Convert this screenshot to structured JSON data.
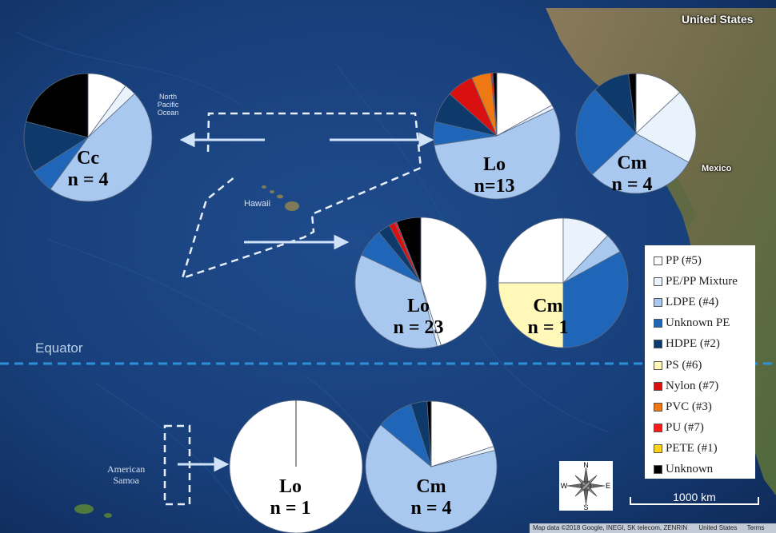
{
  "map": {
    "labels": {
      "north_pacific": "North\nPacific\nOcean",
      "hawaii": "Hawaii",
      "equator": "Equator",
      "american_samoa": "American\nSamoa",
      "united_states": "United States",
      "mexico": "Mexico"
    },
    "scale_label": "1000 km",
    "compass": {
      "n": "N",
      "e": "E",
      "s": "S",
      "w": "W"
    },
    "attribution": {
      "data": "Map data ©2018 Google, INEGI, SK telecom, ZENRIN",
      "region": "United States",
      "terms": "Terms"
    }
  },
  "legend": [
    {
      "label": "PP (#5)",
      "color": "#ffffff"
    },
    {
      "label": "PE/PP Mixture",
      "color": "#eaf2fc"
    },
    {
      "label": "LDPE (#4)",
      "color": "#a9c8ef"
    },
    {
      "label": "Unknown PE",
      "color": "#1f66b8"
    },
    {
      "label": "HDPE (#2)",
      "color": "#0d3a6a"
    },
    {
      "label": "PS (#6)",
      "color": "#fff8b8"
    },
    {
      "label": "Nylon (#7)",
      "color": "#d81010"
    },
    {
      "label": "PVC (#3)",
      "color": "#ee7812"
    },
    {
      "label": "PU (#7)",
      "color": "#ff1a1a"
    },
    {
      "label": "PETE (#1)",
      "color": "#ffd21a"
    },
    {
      "label": "Unknown",
      "color": "#000000"
    }
  ],
  "chart_data": {
    "type": "pie",
    "categories": [
      "PP (#5)",
      "PE/PP Mixture",
      "LDPE (#4)",
      "Unknown PE",
      "HDPE (#2)",
      "PS (#6)",
      "Nylon (#7)",
      "PVC (#3)",
      "PU (#7)",
      "PETE (#1)",
      "Unknown"
    ],
    "pies": [
      {
        "species": "Cc",
        "n_label": "n = 4",
        "values": [
          10,
          3,
          47,
          6,
          13,
          0,
          0,
          0,
          0,
          0,
          21
        ]
      },
      {
        "species": "Lo",
        "n_label": "n=13",
        "values": [
          17,
          1,
          55,
          6,
          8,
          0,
          7,
          5,
          0.5,
          0,
          1
        ]
      },
      {
        "species": "Cm",
        "n_label": "n = 4",
        "values": [
          13,
          20,
          30,
          25,
          10,
          0,
          0,
          0,
          0,
          0,
          2
        ]
      },
      {
        "species": "Lo",
        "n_label": "n = 23",
        "values": [
          45,
          1,
          36,
          7,
          3,
          0,
          1.5,
          0,
          0.5,
          0,
          6
        ]
      },
      {
        "species": "Cm",
        "n_label": "n = 1",
        "values": [
          25,
          12,
          5,
          33,
          0,
          25,
          0,
          0,
          0,
          0,
          0
        ]
      },
      {
        "species": "Lo",
        "n_label": "n = 1",
        "values": [
          100,
          0,
          0,
          0,
          0,
          0,
          0,
          0,
          0,
          0,
          0
        ]
      },
      {
        "species": "Cm",
        "n_label": "n = 4",
        "values": [
          20,
          1,
          65,
          9,
          4,
          0,
          0,
          0,
          0,
          0,
          1
        ]
      }
    ]
  }
}
